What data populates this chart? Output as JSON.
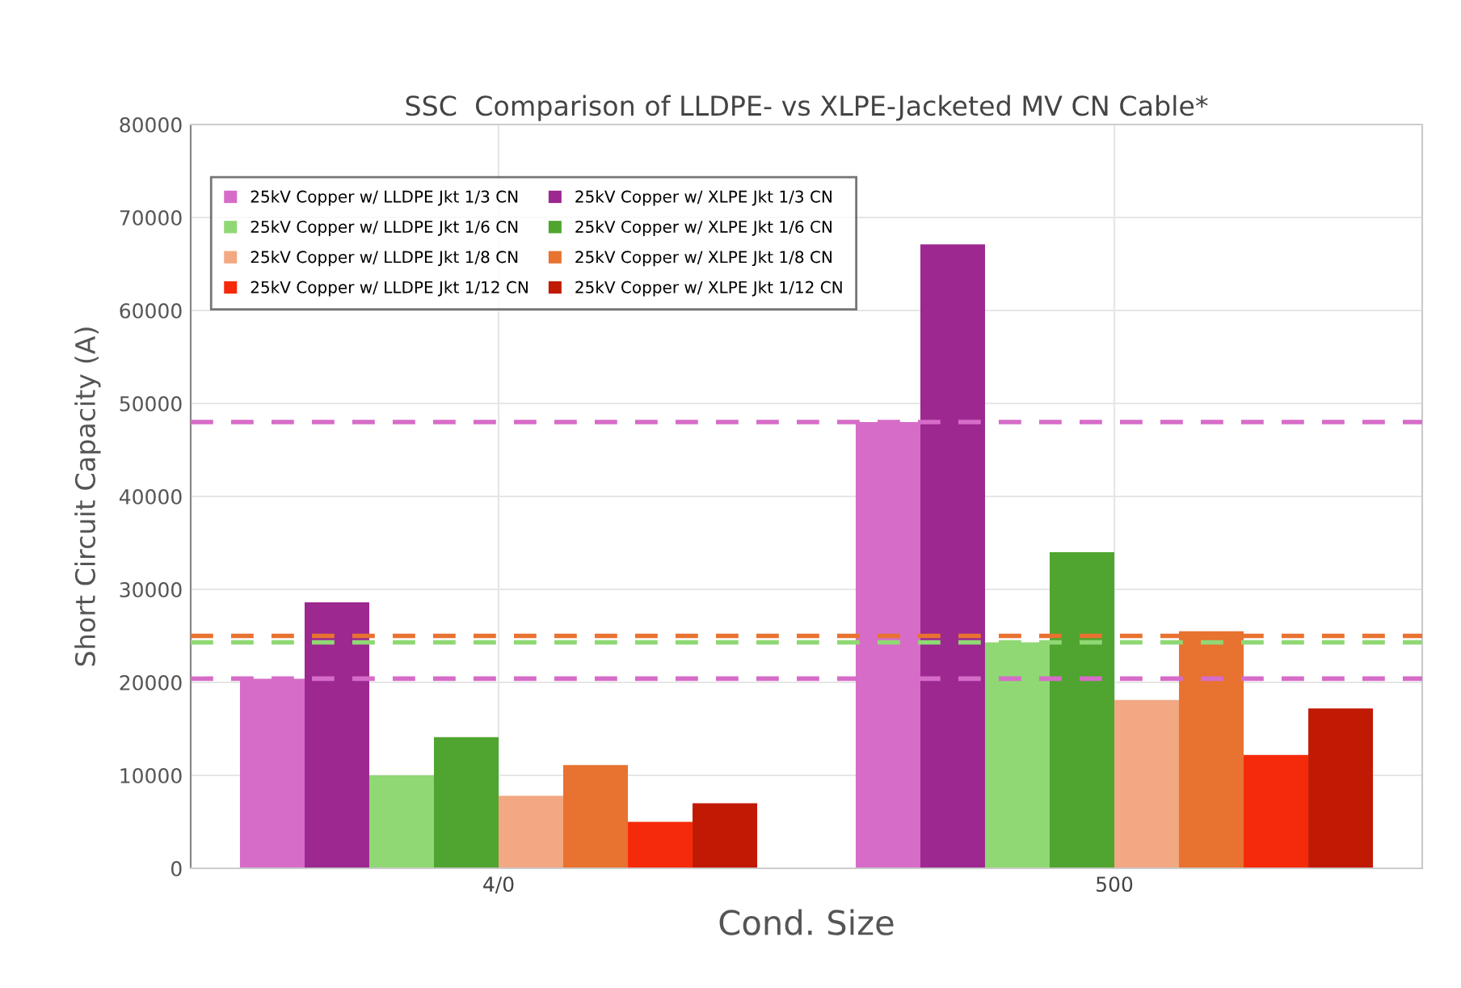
{
  "chart_data": {
    "type": "bar",
    "title": "SSC  Comparison of LLDPE- vs XLPE-Jacketed MV CN Cable*",
    "xlabel": "Cond. Size",
    "ylabel": "Short Circuit Capacity (A)",
    "categories": [
      "4/0",
      "500"
    ],
    "series": [
      {
        "name": "25kV Copper w/ LLDPE Jkt 1/3 CN",
        "color": "#d66cc8",
        "values": [
          20400,
          48000
        ]
      },
      {
        "name": "25kV Copper w/ XLPE Jkt 1/3 CN",
        "color": "#9c2890",
        "values": [
          28600,
          67100
        ]
      },
      {
        "name": "25kV Copper w/ LLDPE Jkt 1/6 CN",
        "color": "#8fd874",
        "values": [
          10000,
          24300
        ]
      },
      {
        "name": "25kV Copper w/ XLPE Jkt 1/6 CN",
        "color": "#4fa52f",
        "values": [
          14100,
          34000
        ]
      },
      {
        "name": "25kV Copper w/ LLDPE Jkt 1/8 CN",
        "color": "#f2a882",
        "values": [
          7800,
          18100
        ]
      },
      {
        "name": "25kV Copper w/ XLPE Jkt 1/8 CN",
        "color": "#e87230",
        "values": [
          11100,
          25500
        ]
      },
      {
        "name": "25kV Copper w/ LLDPE Jkt 1/12 CN",
        "color": "#f52a0a",
        "values": [
          5000,
          12200
        ]
      },
      {
        "name": "25kV Copper w/ XLPE Jkt 1/12 CN",
        "color": "#c01a05",
        "values": [
          7000,
          17200
        ]
      }
    ],
    "ylim": [
      0,
      80000
    ],
    "yticks": [
      0,
      10000,
      20000,
      30000,
      40000,
      50000,
      60000,
      70000,
      80000
    ],
    "ref_lines": [
      {
        "axis": "y",
        "value": 48000,
        "color": "#d66cc8",
        "line_style": "dashed"
      },
      {
        "axis": "y",
        "value": 20400,
        "color": "#d66cc8",
        "line_style": "dashed"
      },
      {
        "axis": "y",
        "value": 25000,
        "color": "#e87230",
        "line_style": "dashed"
      },
      {
        "axis": "y",
        "value": 24300,
        "color": "#8fd874",
        "line_style": "dashed"
      }
    ],
    "grid": true,
    "legend": "top left"
  }
}
